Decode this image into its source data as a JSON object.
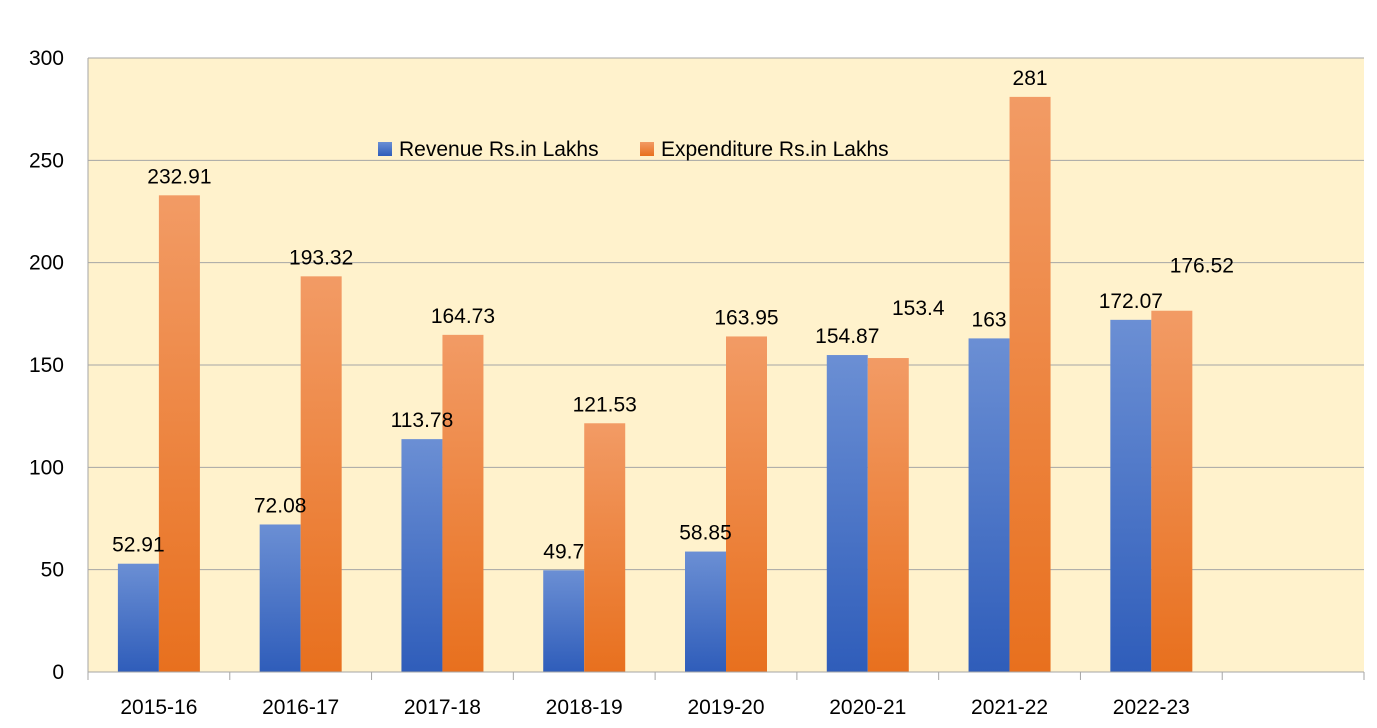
{
  "chart_data": {
    "type": "bar",
    "categories": [
      "2015-16",
      "2016-17",
      "2017-18",
      "2018-19",
      "2019-20",
      "2020-21",
      "2021-22",
      "2022-23",
      ""
    ],
    "series": [
      {
        "name": "Revenue Rs.in Lakhs",
        "values": [
          52.91,
          72.08,
          113.78,
          49.7,
          58.85,
          154.87,
          163,
          172.07,
          null
        ],
        "labels": [
          "52.91",
          "72.08",
          "113.78",
          "49.7",
          "58.85",
          "154.87",
          "163",
          "172.07",
          ""
        ],
        "color": "#4472C4"
      },
      {
        "name": "Expenditure Rs.in Lakhs",
        "values": [
          232.91,
          193.32,
          164.73,
          121.53,
          163.95,
          153.4,
          281,
          176.52,
          null
        ],
        "labels": [
          "232.91",
          "193.32",
          "164.73",
          "121.53",
          "163.95",
          "153.4",
          "281",
          "176.52",
          ""
        ],
        "color": "#ED7D31"
      }
    ],
    "ylim": [
      0,
      300
    ],
    "yticks": [
      "0",
      "50",
      "100",
      "150",
      "200",
      "250",
      "300"
    ],
    "grid": true,
    "legend_position": "top-center",
    "plot_background": "#FFF2CC"
  }
}
